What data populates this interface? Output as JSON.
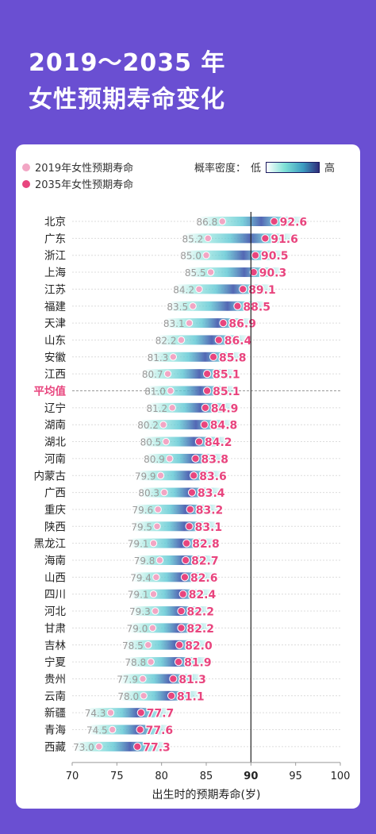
{
  "title": {
    "line1": "2019～2035 年",
    "line2": "女性预期寿命变化"
  },
  "legend": {
    "series_2019": "2019年女性预期寿命",
    "series_2035": "2035年女性预期寿命",
    "density_label": "概率密度：",
    "low": "低",
    "high": "高"
  },
  "colors": {
    "background": "#6a4fd2",
    "dot_2019": "#f2a6c4",
    "dot_2035": "#e8457e",
    "label_2019": "#999999",
    "label_2035": "#e8457e",
    "highlight": "#e8457e"
  },
  "chart_data": {
    "type": "scatter",
    "xlabel": "出生时的预期寿命(岁)",
    "xlim": [
      70,
      100
    ],
    "xticks": [
      70,
      75,
      80,
      85,
      90,
      95,
      100
    ],
    "reference_line": 90,
    "highlight_category": "平均值",
    "categories": [
      "北京",
      "广东",
      "浙江",
      "上海",
      "江苏",
      "福建",
      "天津",
      "山东",
      "安徽",
      "江西",
      "平均值",
      "辽宁",
      "湖南",
      "湖北",
      "河南",
      "内蒙古",
      "广西",
      "重庆",
      "陕西",
      "黑龙江",
      "海南",
      "山西",
      "四川",
      "河北",
      "甘肃",
      "吉林",
      "宁夏",
      "贵州",
      "云南",
      "新疆",
      "青海",
      "西藏"
    ],
    "series": [
      {
        "name": "2019年女性预期寿命",
        "values": [
          86.8,
          85.2,
          85.0,
          85.5,
          84.2,
          83.5,
          83.1,
          82.2,
          81.3,
          80.7,
          81.0,
          81.2,
          80.2,
          80.5,
          80.9,
          79.9,
          80.3,
          79.6,
          79.5,
          79.1,
          79.8,
          79.4,
          79.1,
          79.3,
          79.0,
          78.5,
          78.8,
          77.9,
          78.0,
          74.3,
          74.5,
          73.0
        ]
      },
      {
        "name": "2035年女性预期寿命",
        "values": [
          92.6,
          91.6,
          90.5,
          90.3,
          89.1,
          88.5,
          86.9,
          86.4,
          85.8,
          85.1,
          85.1,
          84.9,
          84.8,
          84.2,
          83.8,
          83.6,
          83.4,
          83.2,
          83.1,
          82.8,
          82.7,
          82.6,
          82.4,
          82.2,
          82.2,
          82.0,
          81.9,
          81.3,
          81.1,
          77.7,
          77.6,
          77.3
        ]
      }
    ]
  }
}
